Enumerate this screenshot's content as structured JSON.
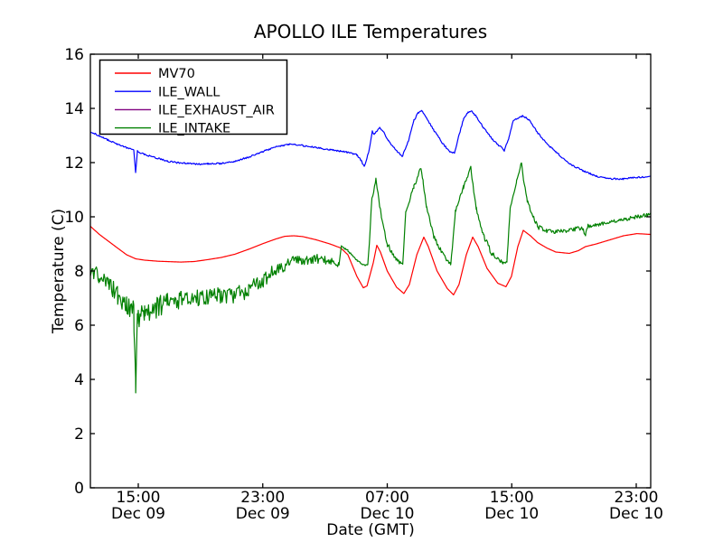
{
  "figure": {
    "background": "#ffffff",
    "axes_color": "#000000"
  },
  "chart_data": {
    "type": "line",
    "title": "APOLLO ILE Temperatures",
    "xlabel": "Date (GMT)",
    "ylabel": "Temperature (C)",
    "ylim": [
      0,
      16
    ],
    "yticks": [
      0,
      2,
      4,
      6,
      8,
      10,
      12,
      14,
      16
    ],
    "x_unit": "hours since Dec 09 00:00 GMT",
    "xlim_hours": [
      11.92,
      47.93
    ],
    "xticks": [
      {
        "hours": 15,
        "time": "15:00",
        "date": "Dec 09"
      },
      {
        "hours": 23,
        "time": "23:00",
        "date": "Dec 09"
      },
      {
        "hours": 31,
        "time": "07:00",
        "date": "Dec 10"
      },
      {
        "hours": 39,
        "time": "15:00",
        "date": "Dec 10"
      },
      {
        "hours": 47,
        "time": "23:00",
        "date": "Dec 10"
      }
    ],
    "grid": false,
    "legend_position": "upper left",
    "series": [
      {
        "name": "MV70",
        "color": "#ff0000",
        "noise": 0,
        "points": [
          [
            11.92,
            9.65
          ],
          [
            12.5,
            9.35
          ],
          [
            13.08,
            9.1
          ],
          [
            13.66,
            8.85
          ],
          [
            14.25,
            8.6
          ],
          [
            14.83,
            8.45
          ],
          [
            15.41,
            8.4
          ],
          [
            16.28,
            8.36
          ],
          [
            17.73,
            8.33
          ],
          [
            18.6,
            8.35
          ],
          [
            19.47,
            8.42
          ],
          [
            20.34,
            8.5
          ],
          [
            21.21,
            8.62
          ],
          [
            22.08,
            8.8
          ],
          [
            22.96,
            9.0
          ],
          [
            23.83,
            9.18
          ],
          [
            24.41,
            9.28
          ],
          [
            25.0,
            9.3
          ],
          [
            25.57,
            9.27
          ],
          [
            26.44,
            9.15
          ],
          [
            27.31,
            9.0
          ],
          [
            28.01,
            8.85
          ],
          [
            28.47,
            8.6
          ],
          [
            29.05,
            7.8
          ],
          [
            29.46,
            7.38
          ],
          [
            29.7,
            7.45
          ],
          [
            30.1,
            8.3
          ],
          [
            30.33,
            8.95
          ],
          [
            30.56,
            8.7
          ],
          [
            31.0,
            8.0
          ],
          [
            31.6,
            7.4
          ],
          [
            32.07,
            7.17
          ],
          [
            32.42,
            7.5
          ],
          [
            32.9,
            8.6
          ],
          [
            33.35,
            9.25
          ],
          [
            33.64,
            8.9
          ],
          [
            34.2,
            8.0
          ],
          [
            34.86,
            7.35
          ],
          [
            35.26,
            7.12
          ],
          [
            35.61,
            7.5
          ],
          [
            36.08,
            8.6
          ],
          [
            36.49,
            9.25
          ],
          [
            36.84,
            8.9
          ],
          [
            37.41,
            8.1
          ],
          [
            38.1,
            7.55
          ],
          [
            38.63,
            7.42
          ],
          [
            38.98,
            7.8
          ],
          [
            39.39,
            8.9
          ],
          [
            39.74,
            9.5
          ],
          [
            40.2,
            9.3
          ],
          [
            40.66,
            9.05
          ],
          [
            41.25,
            8.85
          ],
          [
            41.83,
            8.7
          ],
          [
            42.7,
            8.65
          ],
          [
            43.28,
            8.75
          ],
          [
            43.74,
            8.9
          ],
          [
            44.44,
            9.0
          ],
          [
            45.31,
            9.15
          ],
          [
            46.18,
            9.3
          ],
          [
            47.05,
            9.38
          ],
          [
            47.92,
            9.35
          ]
        ]
      },
      {
        "name": "ILE_WALL",
        "color": "#0000ff",
        "noise": 0.03,
        "points": [
          [
            11.92,
            13.15
          ],
          [
            12.5,
            12.98
          ],
          [
            13.08,
            12.83
          ],
          [
            13.66,
            12.68
          ],
          [
            14.25,
            12.55
          ],
          [
            14.71,
            12.45
          ],
          [
            14.83,
            11.62
          ],
          [
            14.94,
            12.42
          ],
          [
            15.41,
            12.3
          ],
          [
            15.99,
            12.2
          ],
          [
            16.86,
            12.05
          ],
          [
            17.73,
            11.98
          ],
          [
            18.6,
            11.95
          ],
          [
            19.47,
            11.95
          ],
          [
            20.34,
            11.97
          ],
          [
            21.21,
            12.05
          ],
          [
            22.08,
            12.2
          ],
          [
            22.96,
            12.4
          ],
          [
            23.83,
            12.58
          ],
          [
            24.7,
            12.68
          ],
          [
            25.57,
            12.63
          ],
          [
            26.44,
            12.55
          ],
          [
            27.31,
            12.48
          ],
          [
            28.01,
            12.43
          ],
          [
            28.47,
            12.38
          ],
          [
            29.05,
            12.28
          ],
          [
            29.3,
            12.1
          ],
          [
            29.52,
            11.85
          ],
          [
            29.81,
            12.4
          ],
          [
            30.04,
            13.15
          ],
          [
            30.16,
            13.05
          ],
          [
            30.5,
            13.28
          ],
          [
            30.79,
            13.1
          ],
          [
            31.08,
            12.8
          ],
          [
            31.43,
            12.55
          ],
          [
            31.96,
            12.22
          ],
          [
            32.36,
            12.8
          ],
          [
            32.71,
            13.55
          ],
          [
            33.0,
            13.85
          ],
          [
            33.23,
            13.9
          ],
          [
            33.52,
            13.65
          ],
          [
            33.99,
            13.2
          ],
          [
            34.57,
            12.7
          ],
          [
            35.03,
            12.4
          ],
          [
            35.32,
            12.35
          ],
          [
            35.56,
            12.9
          ],
          [
            35.9,
            13.6
          ],
          [
            36.19,
            13.85
          ],
          [
            36.43,
            13.9
          ],
          [
            36.72,
            13.7
          ],
          [
            37.18,
            13.3
          ],
          [
            37.76,
            12.85
          ],
          [
            38.34,
            12.55
          ],
          [
            38.52,
            12.45
          ],
          [
            38.81,
            12.9
          ],
          [
            39.1,
            13.55
          ],
          [
            39.39,
            13.65
          ],
          [
            39.68,
            13.72
          ],
          [
            40.08,
            13.6
          ],
          [
            40.66,
            13.1
          ],
          [
            41.25,
            12.7
          ],
          [
            41.83,
            12.4
          ],
          [
            42.7,
            11.95
          ],
          [
            43.57,
            11.7
          ],
          [
            44.44,
            11.5
          ],
          [
            45.31,
            11.4
          ],
          [
            46.18,
            11.4
          ],
          [
            47.05,
            11.45
          ],
          [
            47.92,
            11.5
          ]
        ]
      },
      {
        "name": "ILE_EXHAUST_AIR",
        "color": "#800080",
        "noise": 0,
        "points": []
      },
      {
        "name": "ILE_INTAKE",
        "color": "#008000",
        "noise": [
          [
            11.92,
            0.3
          ],
          [
            14.25,
            0.4
          ],
          [
            15.99,
            0.4
          ],
          [
            17.73,
            0.35
          ],
          [
            20.34,
            0.32
          ],
          [
            22.96,
            0.28
          ],
          [
            24.7,
            0.22
          ],
          [
            26.44,
            0.18
          ],
          [
            27.9,
            0.12
          ],
          [
            28.05,
            0.04
          ],
          [
            29.8,
            0.03
          ],
          [
            30.27,
            0.08
          ],
          [
            31.0,
            0.1
          ],
          [
            31.99,
            0.06
          ],
          [
            33.17,
            0.08
          ],
          [
            34.57,
            0.1
          ],
          [
            35.38,
            0.06
          ],
          [
            36.5,
            0.08
          ],
          [
            37.76,
            0.1
          ],
          [
            38.9,
            0.05
          ],
          [
            40.0,
            0.06
          ],
          [
            40.66,
            0.1
          ],
          [
            41.83,
            0.07
          ],
          [
            43.57,
            0.09
          ],
          [
            44.44,
            0.06
          ],
          [
            47.92,
            0.07
          ]
        ],
        "points": [
          [
            11.92,
            8.0
          ],
          [
            12.5,
            7.75
          ],
          [
            13.08,
            7.5
          ],
          [
            13.66,
            7.1
          ],
          [
            14.25,
            6.8
          ],
          [
            14.71,
            6.5
          ],
          [
            14.83,
            3.72
          ],
          [
            14.94,
            6.3
          ],
          [
            15.41,
            6.45
          ],
          [
            15.99,
            6.6
          ],
          [
            16.86,
            6.85
          ],
          [
            17.73,
            6.9
          ],
          [
            18.6,
            6.95
          ],
          [
            19.47,
            7.1
          ],
          [
            20.34,
            7.05
          ],
          [
            21.21,
            7.1
          ],
          [
            22.08,
            7.3
          ],
          [
            22.96,
            7.65
          ],
          [
            23.83,
            8.05
          ],
          [
            24.7,
            8.3
          ],
          [
            25.57,
            8.4
          ],
          [
            26.44,
            8.45
          ],
          [
            27.31,
            8.35
          ],
          [
            27.9,
            8.25
          ],
          [
            28.05,
            8.9
          ],
          [
            28.47,
            8.75
          ],
          [
            29.05,
            8.4
          ],
          [
            29.58,
            8.18
          ],
          [
            29.75,
            8.25
          ],
          [
            29.87,
            9.2
          ],
          [
            30.0,
            10.6
          ],
          [
            30.27,
            11.35
          ],
          [
            30.4,
            10.9
          ],
          [
            30.62,
            10.0
          ],
          [
            31.0,
            9.0
          ],
          [
            31.55,
            8.45
          ],
          [
            31.99,
            8.22
          ],
          [
            32.19,
            10.2
          ],
          [
            32.71,
            11.1
          ],
          [
            33.17,
            11.85
          ],
          [
            33.3,
            11.3
          ],
          [
            33.52,
            10.4
          ],
          [
            33.99,
            9.3
          ],
          [
            34.57,
            8.6
          ],
          [
            35.09,
            8.27
          ],
          [
            35.38,
            10.2
          ],
          [
            35.9,
            11.1
          ],
          [
            36.37,
            11.8
          ],
          [
            36.5,
            11.2
          ],
          [
            36.72,
            10.3
          ],
          [
            37.18,
            9.3
          ],
          [
            37.76,
            8.6
          ],
          [
            38.4,
            8.3
          ],
          [
            38.69,
            8.35
          ],
          [
            38.9,
            10.3
          ],
          [
            39.3,
            11.3
          ],
          [
            39.62,
            12.0
          ],
          [
            39.75,
            11.4
          ],
          [
            40.0,
            10.6
          ],
          [
            40.37,
            10.0
          ],
          [
            40.66,
            9.65
          ],
          [
            41.25,
            9.5
          ],
          [
            41.83,
            9.45
          ],
          [
            42.7,
            9.5
          ],
          [
            43.57,
            9.6
          ],
          [
            43.74,
            9.3
          ],
          [
            43.9,
            9.65
          ],
          [
            44.44,
            9.7
          ],
          [
            45.31,
            9.8
          ],
          [
            46.18,
            9.9
          ],
          [
            47.05,
            10.0
          ],
          [
            47.92,
            10.1
          ]
        ]
      }
    ]
  }
}
